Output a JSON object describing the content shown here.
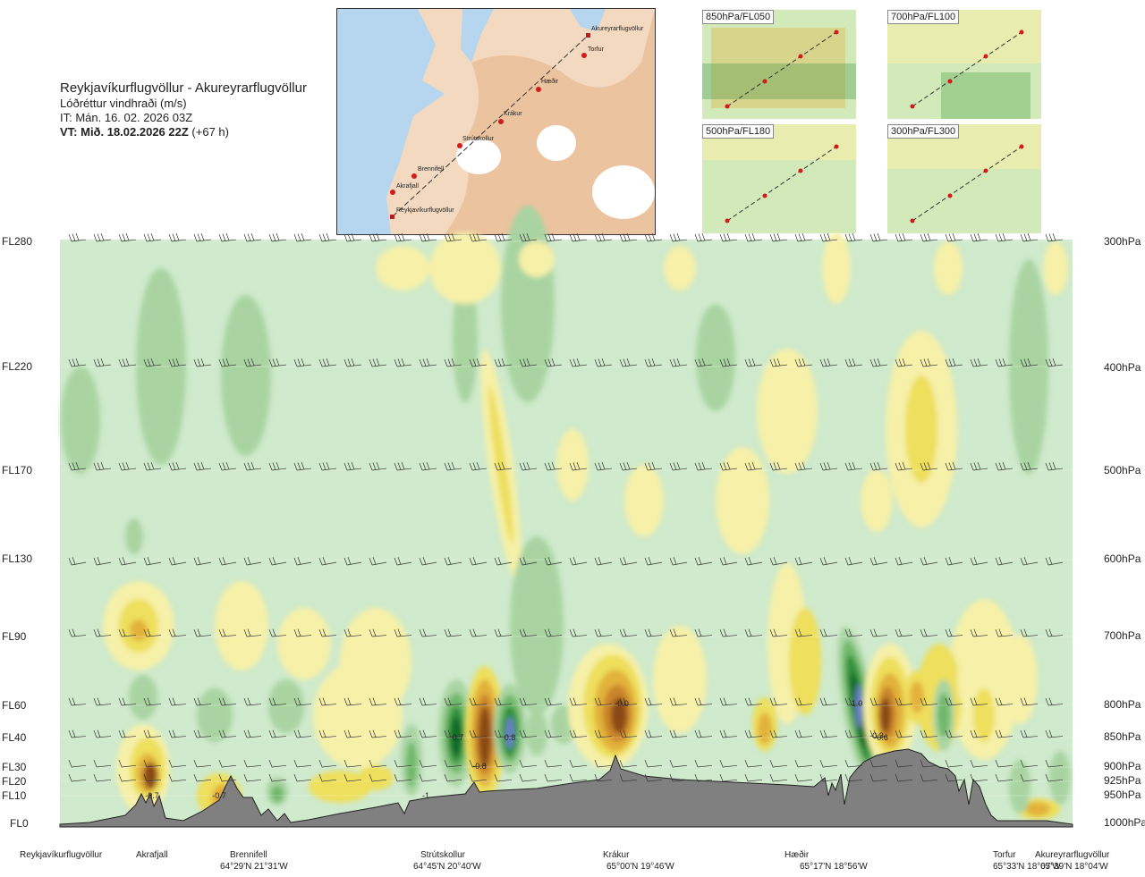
{
  "header": {
    "route": "Reykjavíkurflugvöllur - Akureyrarflugvöllur",
    "quantity": "Lóðréttur vindhraði (m/s)",
    "issue_time": "IT: Mán. 16. 02. 2026 03Z",
    "valid_prefix": "VT: Mið. 18.02.2026 22Z",
    "valid_suffix": "(+67 h)"
  },
  "map": {
    "points": [
      "Akureyrarflugvöllur",
      "Torfur",
      "Hæðir",
      "Krákur",
      "Strútskollur",
      "Brennifell",
      "Akrafjall",
      "Reykjavíkurflugvöllur"
    ]
  },
  "minimaps": [
    "850hPa/FL050",
    "700hPa/FL100",
    "500hPa/FL180",
    "300hPa/FL300"
  ],
  "chart_data": {
    "type": "heatmap",
    "title": "Reykjavíkurflugvöllur - Akureyrarflugvöllur",
    "subtitle": "Lóðréttur vindhraði (m/s)",
    "flight_levels": [
      "FL280",
      "FL220",
      "FL170",
      "FL130",
      "FL90",
      "FL60",
      "FL40",
      "FL30",
      "FL20",
      "FL10",
      "FL0"
    ],
    "pressure_levels": [
      "300hPa",
      "400hPa",
      "500hPa",
      "600hPa",
      "700hPa",
      "800hPa",
      "850hPa",
      "900hPa",
      "925hPa",
      "950hPa",
      "1000hPa"
    ],
    "waypoints": [
      {
        "name": "Reykjavíkurflugvöllur",
        "coord": ""
      },
      {
        "name": "Akrafjall",
        "coord": ""
      },
      {
        "name": "Brennifell",
        "coord": "64°29'N 21°31'W"
      },
      {
        "name": "Strútskollur",
        "coord": "64°45'N 20°40'W"
      },
      {
        "name": "Krákur",
        "coord": "65°00'N 19°46'W"
      },
      {
        "name": "Hæðir",
        "coord": "65°17'N 18°56'W"
      },
      {
        "name": "Torfur",
        "coord": "65°33'N 18°07'W"
      },
      {
        "name": "Akureyrarflugvöllur",
        "coord": "65°39'N 18°04'W"
      }
    ],
    "contour_labels": [
      "-0.7",
      "-0.7",
      "0.7",
      "-0.8",
      "0.8",
      "-0.0",
      "-1",
      "-0.6",
      "1.0",
      "-0.3"
    ]
  },
  "colors": {
    "background": "#cfeacc",
    "weak_up": "#f6f0a8",
    "up1": "#eedf5c",
    "up2": "#e2b23a",
    "up3": "#c9852a",
    "up4": "#8a4a14",
    "down1": "#a9d4a2",
    "down2": "#6fb86a",
    "down3": "#2f8f3a",
    "down4": "#0f6a27",
    "down5": "#6b80c8",
    "terrain": "#808080"
  }
}
